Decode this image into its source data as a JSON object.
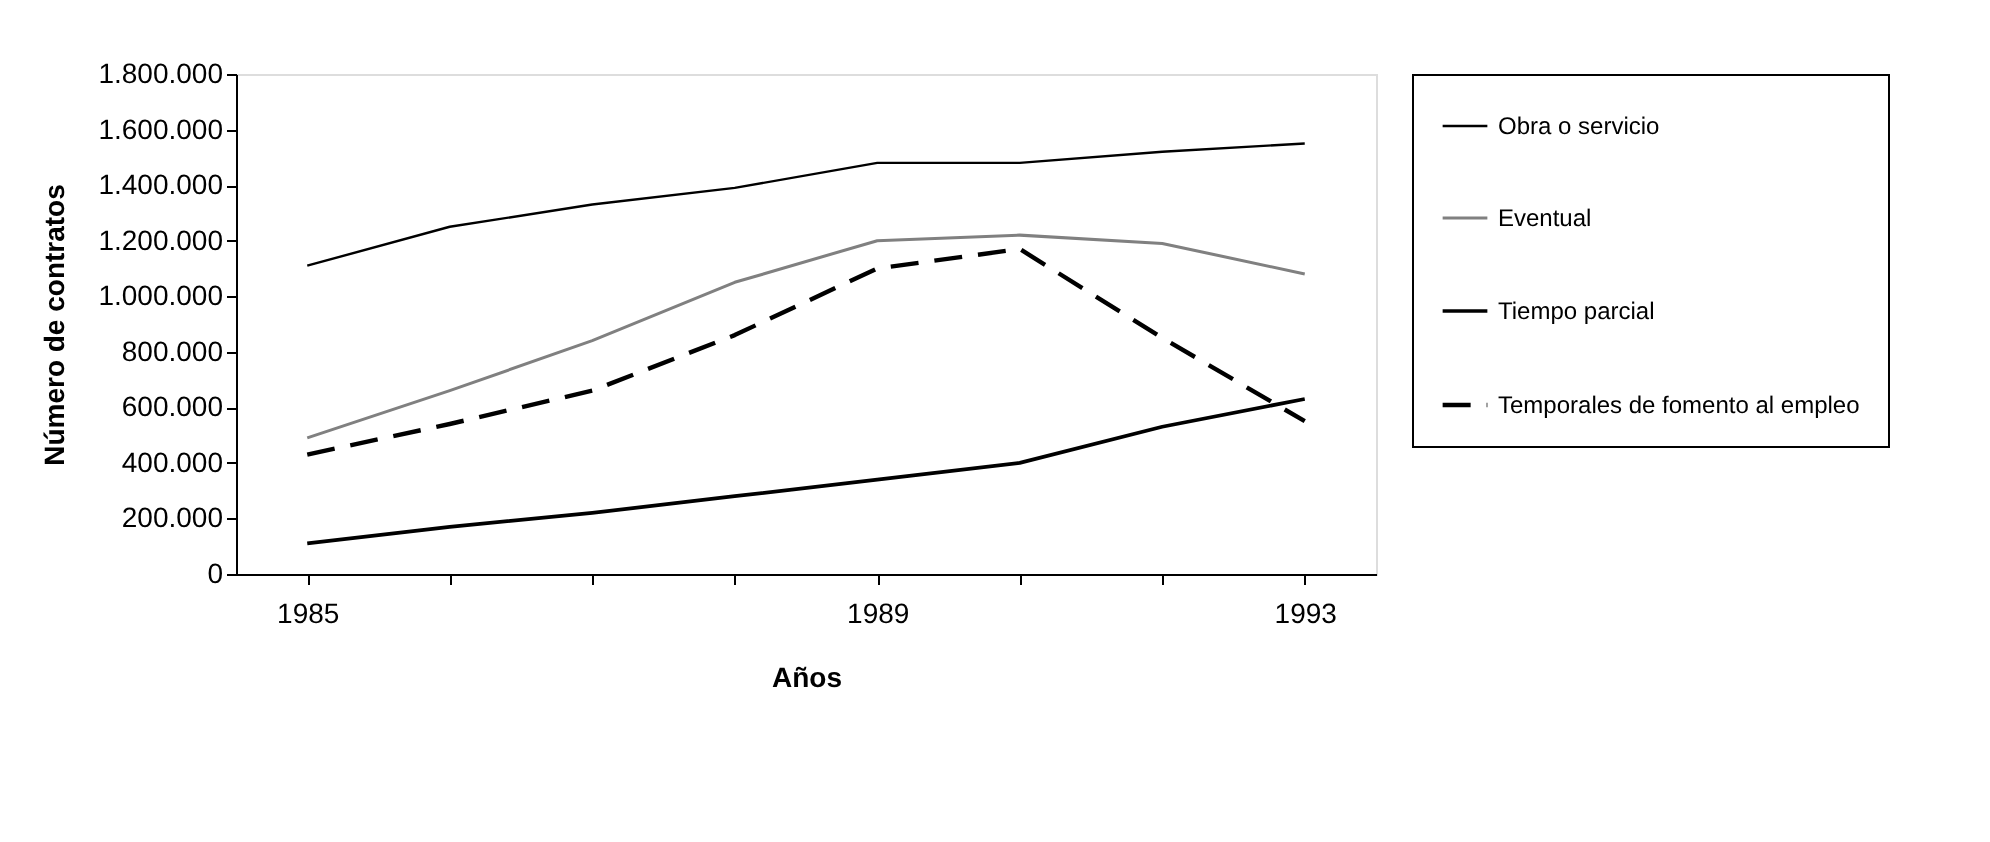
{
  "chart_data": {
    "type": "line",
    "xlabel": "Años",
    "ylabel": "Número de contratos",
    "categories": [
      "1985",
      null,
      null,
      null,
      "1989",
      null,
      null,
      "1993"
    ],
    "series": [
      {
        "name": "Obra o servicio",
        "color": "#000000",
        "line_style": "solid",
        "values": [
          1110000,
          1250000,
          1330000,
          1390000,
          1480000,
          1480000,
          1520000,
          1550000
        ]
      },
      {
        "name": "Eventual",
        "color": "#808080",
        "line_style": "solid",
        "values": [
          490000,
          660000,
          840000,
          1050000,
          1200000,
          1220000,
          1190000,
          1080000
        ]
      },
      {
        "name": "Tiempo parcial",
        "color": "#000000",
        "line_style": "solid",
        "values": [
          110000,
          170000,
          220000,
          280000,
          340000,
          400000,
          530000,
          630000
        ]
      },
      {
        "name": "Temporales de fomento al empleo",
        "color": "#000000",
        "line_style": "dashed",
        "values": [
          430000,
          540000,
          660000,
          860000,
          1100000,
          1170000,
          850000,
          550000
        ]
      }
    ],
    "ylim": [
      0,
      1800000
    ],
    "yticks": [
      {
        "value": 0,
        "label": "0"
      },
      {
        "value": 200000,
        "label": "200.000"
      },
      {
        "value": 400000,
        "label": "400.000"
      },
      {
        "value": 600000,
        "label": "600.000"
      },
      {
        "value": 800000,
        "label": "800.000"
      },
      {
        "value": 1000000,
        "label": "1.000.000"
      },
      {
        "value": 1200000,
        "label": "1.200.000"
      },
      {
        "value": 1400000,
        "label": "1.400.000"
      },
      {
        "value": 1600000,
        "label": "1.600.000"
      },
      {
        "value": 1800000,
        "label": "1.800.000"
      }
    ],
    "grid": false,
    "legend": "right",
    "marker": "none"
  }
}
